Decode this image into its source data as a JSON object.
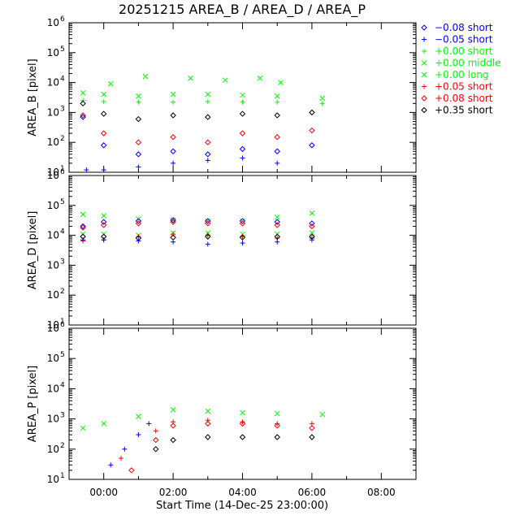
{
  "chart_data": {
    "type": "scatter",
    "title": "20251215 AREA_B / AREA_D / AREA_P",
    "xlabel": "Start Time (14-Dec-25 23:00:00)",
    "x_ticks": [
      "00:00",
      "02:00",
      "04:00",
      "06:00",
      "08:00"
    ],
    "x_tick_hours": [
      1,
      3,
      5,
      7,
      9
    ],
    "xlim_hours": [
      0,
      10
    ],
    "yscale": "log",
    "ylim": [
      10,
      1000000
    ],
    "y_tick_bases": [
      "10",
      "10",
      "10",
      "10",
      "10",
      "10"
    ],
    "y_tick_exps": [
      "1",
      "2",
      "3",
      "4",
      "5",
      "6"
    ],
    "legend_position": "right",
    "legend": [
      {
        "label": "−0.08 short",
        "marker": "diamond",
        "color": "#0000ff"
      },
      {
        "label": "−0.05 short",
        "marker": "plus",
        "color": "#0000ff"
      },
      {
        "label": "+0.00 short",
        "marker": "plus",
        "color": "#00ff00"
      },
      {
        "label": "+0.00 middle",
        "marker": "cross",
        "color": "#00ff00"
      },
      {
        "label": "+0.00 long",
        "marker": "cross",
        "color": "#00ff00"
      },
      {
        "label": "+0.05 short",
        "marker": "plus",
        "color": "#ff0000"
      },
      {
        "label": "+0.08 short",
        "marker": "diamond",
        "color": "#ff0000"
      },
      {
        "label": "+0.35 short",
        "marker": "diamond",
        "color": "#000000"
      }
    ],
    "panels": [
      {
        "ylabel": "AREA_B [pixel]",
        "series": [
          {
            "marker": "cross",
            "color": "#00ff00",
            "x": [
              1.2,
              2.2,
              3.5,
              4.5,
              5.5,
              6.1
            ],
            "y": [
              9000,
              16000,
              14000,
              12000,
              14000,
              10000
            ]
          },
          {
            "marker": "cross",
            "color": "#00ff00",
            "x": [
              0.4,
              1.0,
              2.0,
              3.0,
              4.0,
              5.0,
              6.0,
              7.3
            ],
            "y": [
              4500,
              4000,
              3500,
              4000,
              4000,
              3800,
              3500,
              3000
            ]
          },
          {
            "marker": "plus",
            "color": "#00ff00",
            "x": [
              0.4,
              1.0,
              2.0,
              3.0,
              4.0,
              5.0,
              6.0,
              7.3
            ],
            "y": [
              2500,
              2300,
              2200,
              2200,
              2300,
              2200,
              2200,
              2000
            ]
          },
          {
            "marker": "diamond",
            "color": "#000000",
            "x": [
              0.4,
              1.0,
              2.0,
              3.0,
              4.0,
              5.0,
              6.0,
              7.0
            ],
            "y": [
              2000,
              900,
              600,
              800,
              700,
              900,
              800,
              1000
            ]
          },
          {
            "marker": "diamond",
            "color": "#ff0000",
            "x": [
              0.4,
              1.0,
              2.0,
              3.0,
              4.0,
              5.0,
              6.0,
              7.0
            ],
            "y": [
              800,
              200,
              100,
              150,
              100,
              200,
              150,
              250
            ]
          },
          {
            "marker": "diamond",
            "color": "#0000ff",
            "x": [
              0.4,
              1.0,
              2.0,
              3.0,
              4.0,
              5.0,
              6.0,
              7.0
            ],
            "y": [
              700,
              80,
              40,
              50,
              40,
              60,
              50,
              80
            ]
          },
          {
            "marker": "plus",
            "color": "#0000ff",
            "x": [
              0.5,
              1.0,
              2.0,
              3.0,
              4.0,
              5.0,
              6.0
            ],
            "y": [
              12,
              12,
              15,
              20,
              25,
              30,
              20
            ]
          }
        ]
      },
      {
        "ylabel": "AREA_D [pixel]",
        "series": [
          {
            "marker": "cross",
            "color": "#00ff00",
            "x": [
              0.4,
              1.0,
              2.0,
              3.0,
              4.0,
              5.0,
              6.0,
              7.0
            ],
            "y": [
              50000,
              45000,
              35000,
              32000,
              30000,
              30000,
              40000,
              55000
            ]
          },
          {
            "marker": "diamond",
            "color": "#0000ff",
            "x": [
              0.4,
              1.0,
              2.0,
              3.0,
              4.0,
              5.0,
              6.0,
              7.0
            ],
            "y": [
              20000,
              28000,
              30000,
              32000,
              30000,
              30000,
              28000,
              25000
            ]
          },
          {
            "marker": "diamond",
            "color": "#ff0000",
            "x": [
              0.4,
              1.0,
              2.0,
              3.0,
              4.0,
              5.0,
              6.0,
              7.0
            ],
            "y": [
              18000,
              22000,
              25000,
              28000,
              25000,
              25000,
              22000,
              20000
            ]
          },
          {
            "marker": "cross",
            "color": "#00ff00",
            "x": [
              0.4,
              1.0,
              2.0,
              3.0,
              4.0,
              5.0,
              6.0,
              7.0
            ],
            "y": [
              11000,
              11000,
              10000,
              12000,
              12000,
              11000,
              11000,
              12000
            ]
          },
          {
            "marker": "plus",
            "color": "#ff0000",
            "x": [
              0.4,
              1.0,
              2.0,
              3.0,
              4.0,
              5.0,
              6.0,
              7.0
            ],
            "y": [
              6500,
              7000,
              9000,
              11000,
              10000,
              9000,
              8000,
              8000
            ]
          },
          {
            "marker": "diamond",
            "color": "#000000",
            "x": [
              0.4,
              1.0,
              2.0,
              3.0,
              4.0,
              5.0,
              6.0,
              7.0
            ],
            "y": [
              9000,
              9000,
              8000,
              8500,
              9000,
              8500,
              9000,
              9000
            ]
          },
          {
            "marker": "plus",
            "color": "#0000ff",
            "x": [
              0.4,
              1.0,
              2.0,
              3.0,
              4.0,
              5.0,
              6.0,
              7.0
            ],
            "y": [
              7000,
              7000,
              6500,
              6000,
              5000,
              5500,
              6000,
              7000
            ]
          }
        ]
      },
      {
        "ylabel": "AREA_P [pixel]",
        "series": [
          {
            "marker": "cross",
            "color": "#00ff00",
            "x": [
              0.4,
              1.0,
              2.0,
              3.0,
              4.0,
              5.0,
              6.0,
              7.3
            ],
            "y": [
              500,
              700,
              1200,
              2000,
              1800,
              1600,
              1500,
              1400
            ]
          },
          {
            "marker": "plus",
            "color": "#0000ff",
            "x": [
              1.2,
              1.6,
              2.0,
              2.3
            ],
            "y": [
              30,
              100,
              300,
              700
            ]
          },
          {
            "marker": "diamond",
            "color": "#ff0000",
            "x": [
              1.8,
              2.5,
              3.0,
              4.0,
              5.0,
              6.0,
              7.0
            ],
            "y": [
              20,
              200,
              600,
              700,
              700,
              600,
              500
            ]
          },
          {
            "marker": "plus",
            "color": "#ff0000",
            "x": [
              1.5,
              2.5,
              3.0,
              4.0,
              5.0,
              6.0,
              7.0
            ],
            "y": [
              50,
              400,
              800,
              900,
              800,
              700,
              700
            ]
          },
          {
            "marker": "diamond",
            "color": "#000000",
            "x": [
              2.5,
              3.0,
              4.0,
              5.0,
              6.0,
              7.0
            ],
            "y": [
              100,
              200,
              250,
              250,
              250,
              250
            ]
          }
        ]
      }
    ]
  }
}
